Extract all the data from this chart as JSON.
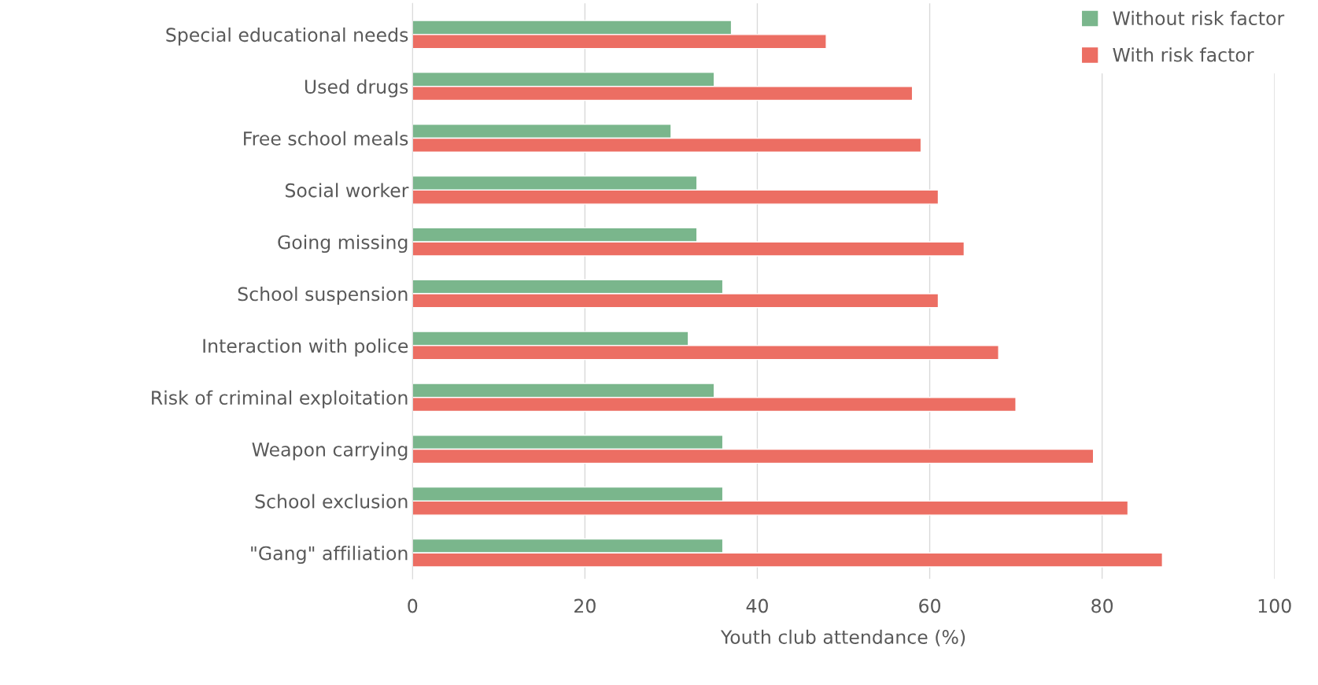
{
  "chart_data": {
    "type": "bar",
    "orientation": "horizontal",
    "xlabel": "Youth club attendance (%)",
    "categories": [
      "Special educational needs",
      "Used drugs",
      "Free school meals",
      "Social worker",
      "Going missing",
      "School suspension",
      "Interaction with police",
      "Risk of criminal exploitation",
      "Weapon carrying",
      "School exclusion",
      "\"Gang\" affiliation"
    ],
    "series": [
      {
        "name": "Without risk factor",
        "color": "#7ab68c",
        "values": [
          37,
          35,
          30,
          33,
          33,
          36,
          32,
          35,
          36,
          36,
          36
        ]
      },
      {
        "name": "With risk factor",
        "color": "#ec6e63",
        "values": [
          48,
          58,
          59,
          61,
          64,
          61,
          68,
          70,
          79,
          83,
          87
        ]
      }
    ],
    "xlim": [
      0,
      100
    ],
    "xticks": [
      0,
      20,
      40,
      60,
      80,
      100
    ],
    "grid": "x",
    "legend": "top right"
  }
}
